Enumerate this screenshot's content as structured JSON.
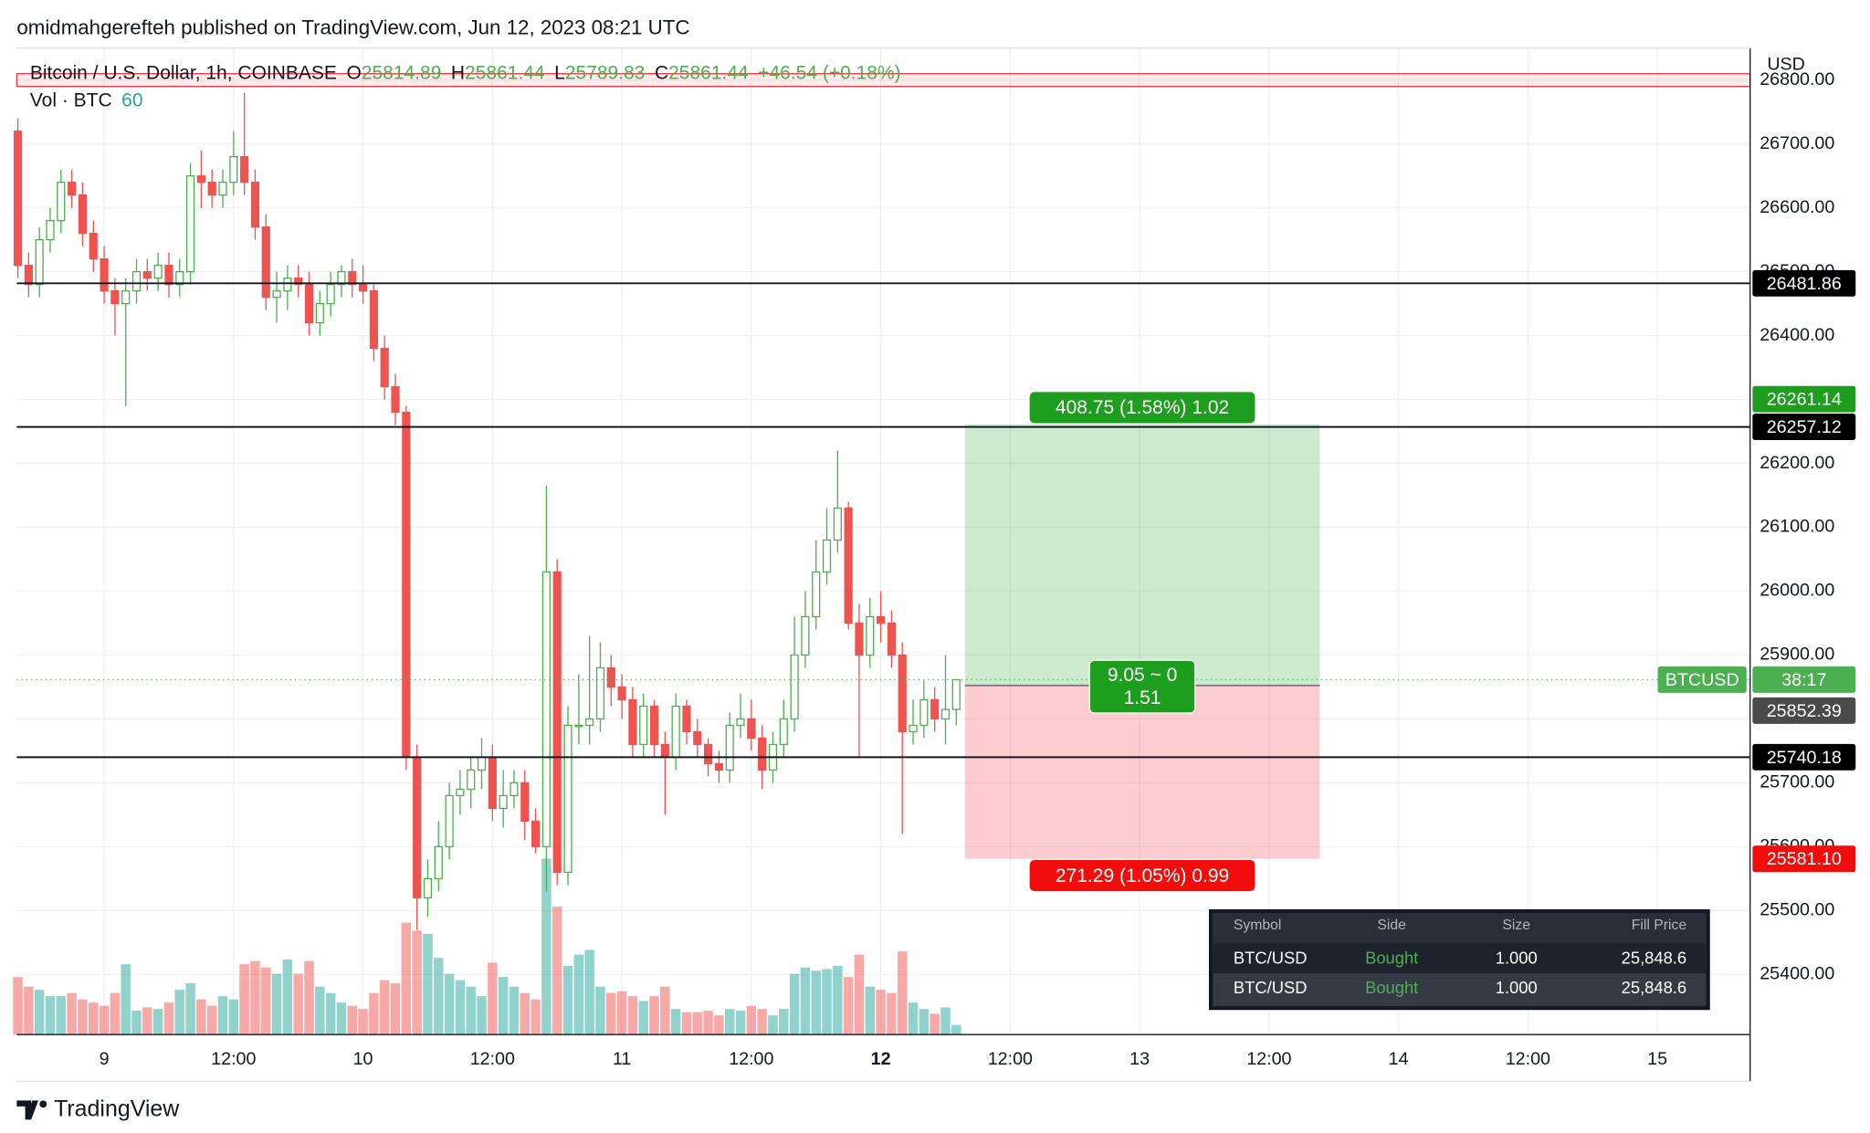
{
  "header": "omidmahgerefteh published on TradingView.com, Jun 12, 2023 08:21 UTC",
  "footer": "TradingView",
  "chart_data": {
    "type": "candlestick",
    "title": "Bitcoin / U.S. Dollar, 1h, COINBASE",
    "ohlc_labels": [
      "O",
      "H",
      "L",
      "C"
    ],
    "change": "+46.54 (+0.18%)",
    "volume_label": "Vol · BTC",
    "y_axis_label": "USD",
    "symbol_tag": "BTCUSD",
    "countdown": "38:17",
    "up_color": "#4caf50",
    "down_color": "#ef5350",
    "grid": true,
    "xlim": [
      -0.1,
      160.6
    ],
    "ylim": [
      25306,
      26850
    ],
    "xticks": [
      {
        "value": 8,
        "label": "9"
      },
      {
        "value": 20,
        "label": "12:00"
      },
      {
        "value": 32,
        "label": "10"
      },
      {
        "value": 44,
        "label": "12:00"
      },
      {
        "value": 56,
        "label": "11"
      },
      {
        "value": 68,
        "label": "12:00"
      },
      {
        "value": 80,
        "label": "12",
        "bold": true
      },
      {
        "value": 92,
        "label": "12:00"
      },
      {
        "value": 104,
        "label": "13"
      },
      {
        "value": 116,
        "label": "12:00"
      },
      {
        "value": 128,
        "label": "14"
      },
      {
        "value": 140,
        "label": "12:00"
      },
      {
        "value": 152,
        "label": "15"
      }
    ],
    "yticks": [
      {
        "value": 25400,
        "label": "25400.00"
      },
      {
        "value": 25500,
        "label": "25500.00"
      },
      {
        "value": 25600,
        "label": "25600.00"
      },
      {
        "value": 25700,
        "label": "25700.00"
      },
      {
        "value": 25800,
        "label": "25800.00"
      },
      {
        "value": 25900,
        "label": "25900.00"
      },
      {
        "value": 26000,
        "label": "26000.00"
      },
      {
        "value": 26100,
        "label": "26100.00"
      },
      {
        "value": 26200,
        "label": "26200.00"
      },
      {
        "value": 26300,
        "label": "26300.00"
      },
      {
        "value": 26400,
        "label": "26400.00"
      },
      {
        "value": 26500,
        "label": "26500.00"
      },
      {
        "value": 26600,
        "label": "26600.00"
      },
      {
        "value": 26700,
        "label": "26700.00"
      },
      {
        "value": 26800,
        "label": "26800.00"
      }
    ],
    "open": [
      26720,
      26510,
      26480,
      26550,
      26580,
      26640,
      26620,
      26560,
      26520,
      26470,
      26450,
      26470,
      26500,
      26490,
      26510,
      26480,
      26500,
      26650,
      26640,
      26620,
      26640,
      26680,
      26640,
      26570,
      26460,
      26470,
      26490,
      26480,
      26420,
      26450,
      26480,
      26500,
      26480,
      26470,
      26380,
      26320,
      26280,
      25740,
      25520,
      25550,
      25600,
      25680,
      25690,
      25720,
      25740,
      25660,
      25680,
      25700,
      25640,
      25600,
      26030,
      25560,
      25790,
      25790,
      25800,
      25880,
      25850,
      25830,
      25760,
      25820,
      25760,
      25740,
      25820,
      25780,
      25760,
      25730,
      25720,
      25790,
      25800,
      25770,
      25720,
      25760,
      25800,
      25900,
      25960,
      26030,
      26080,
      26130,
      25950,
      25900,
      25960,
      25950,
      25900,
      25780,
      25790,
      25830,
      25800,
      25814.89
    ],
    "high": [
      26740,
      26530,
      26570,
      26600,
      26660,
      26660,
      26640,
      26580,
      26540,
      26490,
      26490,
      26520,
      26520,
      26530,
      26530,
      26520,
      26670,
      26690,
      26660,
      26660,
      26720,
      26780,
      26660,
      26590,
      26500,
      26510,
      26510,
      26500,
      26470,
      26500,
      26510,
      26520,
      26510,
      26480,
      26400,
      26340,
      26290,
      25760,
      25580,
      25640,
      25700,
      25720,
      25740,
      25770,
      25760,
      25720,
      25720,
      25720,
      25660,
      26165,
      26050,
      25820,
      25870,
      25930,
      25920,
      25900,
      25870,
      25850,
      25840,
      25830,
      25780,
      25840,
      25830,
      25800,
      25770,
      25750,
      25810,
      25840,
      25830,
      25790,
      25780,
      25830,
      25960,
      26000,
      26080,
      26130,
      26220,
      26140,
      25980,
      25990,
      26000,
      25970,
      25920,
      25830,
      25860,
      25850,
      25900,
      25861.44
    ],
    "low": [
      26490,
      26460,
      26460,
      26530,
      26560,
      26600,
      26540,
      26500,
      26450,
      26400,
      26290,
      26450,
      26470,
      26470,
      26460,
      26460,
      26480,
      26600,
      26600,
      26600,
      26620,
      26620,
      26550,
      26440,
      26420,
      26440,
      26460,
      26400,
      26400,
      26430,
      26460,
      26460,
      26450,
      26360,
      26300,
      26260,
      25720,
      25470,
      25490,
      25530,
      25580,
      25650,
      25660,
      25690,
      25640,
      25630,
      25660,
      25610,
      25590,
      25530,
      25540,
      25540,
      25760,
      25760,
      25780,
      25820,
      25800,
      25740,
      25740,
      25740,
      25650,
      25720,
      25760,
      25740,
      25710,
      25700,
      25700,
      25770,
      25750,
      25690,
      25700,
      25740,
      25780,
      25880,
      25940,
      26010,
      26060,
      25940,
      25740,
      25880,
      25920,
      25880,
      25620,
      25760,
      25770,
      25780,
      25760,
      25789.83
    ],
    "close": [
      26510,
      26480,
      26550,
      26580,
      26640,
      26620,
      26560,
      26520,
      26470,
      26450,
      26470,
      26500,
      26490,
      26510,
      26480,
      26500,
      26650,
      26640,
      26620,
      26640,
      26680,
      26640,
      26570,
      26460,
      26470,
      26490,
      26480,
      26420,
      26450,
      26480,
      26500,
      26480,
      26470,
      26380,
      26320,
      26280,
      25740,
      25520,
      25550,
      25600,
      25680,
      25690,
      25720,
      25740,
      25660,
      25680,
      25700,
      25640,
      25600,
      26030,
      25560,
      25790,
      25790,
      25800,
      25880,
      25850,
      25830,
      25760,
      25820,
      25760,
      25740,
      25820,
      25780,
      25760,
      25730,
      25720,
      25790,
      25800,
      25770,
      25720,
      25760,
      25800,
      25900,
      25960,
      26030,
      26080,
      26130,
      25950,
      25900,
      25960,
      25950,
      25900,
      25780,
      25790,
      25830,
      25800,
      25814.89,
      25861.44
    ],
    "volume": [
      360,
      300,
      280,
      240,
      240,
      260,
      220,
      200,
      180,
      260,
      440,
      150,
      170,
      160,
      200,
      280,
      320,
      220,
      180,
      240,
      220,
      440,
      460,
      420,
      380,
      470,
      380,
      460,
      300,
      260,
      200,
      180,
      160,
      260,
      340,
      320,
      700,
      650,
      630,
      480,
      380,
      340,
      300,
      240,
      450,
      360,
      300,
      260,
      220,
      1100,
      800,
      430,
      500,
      530,
      300,
      260,
      270,
      240,
      210,
      240,
      300,
      160,
      140,
      140,
      150,
      120,
      160,
      150,
      180,
      160,
      120,
      160,
      380,
      420,
      400,
      410,
      430,
      360,
      500,
      300,
      280,
      260,
      520,
      200,
      160,
      130,
      170,
      60
    ],
    "zone": [
      26790,
      26810
    ],
    "levels": [
      26481.86,
      26257.12,
      25740.18
    ],
    "position": {
      "entry": 25852.39,
      "target": 26261.14,
      "stop": {
        "value": 25581.1,
        "label": "25581.10"
      },
      "target_label": "408.75 (1.58%) 1.02",
      "stop_label": "271.29 (1.05%) 0.99",
      "center_label": [
        "9.05 ~ 0",
        "1.51"
      ]
    }
  },
  "table": {
    "header": [
      "Symbol",
      "Side",
      "Size",
      "Fill Price"
    ],
    "rows": [
      [
        "BTC/USD",
        "Bought",
        "1.000",
        "25,848.6"
      ],
      [
        "BTC/USD",
        "Bought",
        "1.000",
        "25,848.6"
      ]
    ]
  }
}
